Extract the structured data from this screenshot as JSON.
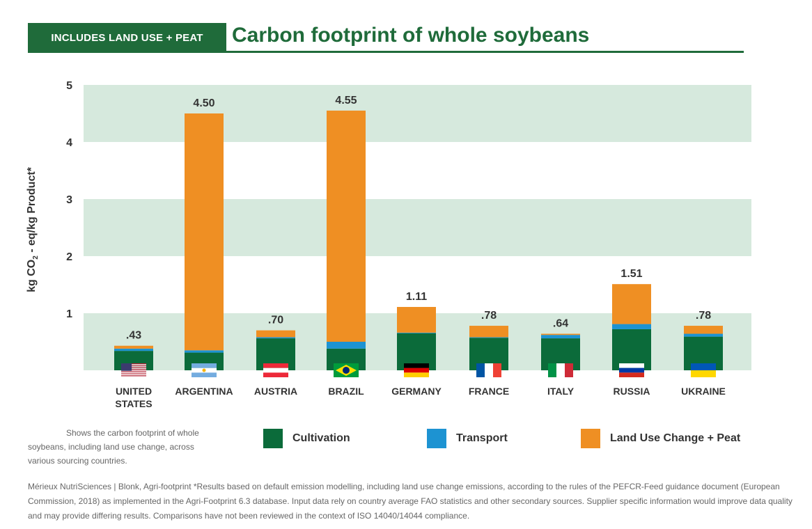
{
  "header": {
    "badge": "INCLUDES LAND USE + PEAT",
    "title": "Carbon footprint of whole soybeans"
  },
  "colors": {
    "cultivation": "#0b6b3a",
    "transport": "#1d93d2",
    "land_use": "#ef8f23",
    "band": "#d6e9dd",
    "header_green": "#1f6b3a"
  },
  "chart_data": {
    "type": "bar",
    "stacked": true,
    "ylabel_main": "kg CO",
    "ylabel_sub": "2",
    "ylabel_rest": " - eq/kg Product*",
    "ylim": [
      0,
      5
    ],
    "yticks": [
      "1",
      "2",
      "3",
      "4",
      "5"
    ],
    "grid": "alternating horizontal bands",
    "categories": [
      "UNITED STATES",
      "ARGENTINA",
      "AUSTRIA",
      "BRAZIL",
      "GERMANY",
      "FRANCE",
      "ITALY",
      "RUSSIA",
      "UKRAINE"
    ],
    "category_lines": [
      [
        "UNITED",
        "STATES"
      ],
      [
        "ARGENTINA"
      ],
      [
        "AUSTRIA"
      ],
      [
        "BRAZIL"
      ],
      [
        "GERMANY"
      ],
      [
        "FRANCE"
      ],
      [
        "ITALY"
      ],
      [
        "RUSSIA"
      ],
      [
        "UKRAINE"
      ]
    ],
    "flags": [
      "flag-united-states-icon",
      "flag-argentina-icon",
      "flag-austria-icon",
      "flag-brazil-icon",
      "flag-germany-icon",
      "flag-france-icon",
      "flag-italy-icon",
      "flag-russia-icon",
      "flag-ukraine-icon"
    ],
    "totals_labels": [
      ".43",
      "4.50",
      ".70",
      "4.55",
      "1.11",
      ".78",
      ".64",
      "1.51",
      ".78"
    ],
    "series": [
      {
        "name": "Cultivation",
        "values": [
          0.34,
          0.31,
          0.56,
          0.38,
          0.65,
          0.57,
          0.56,
          0.72,
          0.59
        ]
      },
      {
        "name": "Transport",
        "values": [
          0.04,
          0.04,
          0.02,
          0.12,
          0.01,
          0.01,
          0.06,
          0.09,
          0.05
        ]
      },
      {
        "name": "Land Use Change + Peat",
        "values": [
          0.05,
          4.15,
          0.12,
          4.05,
          0.45,
          0.2,
          0.02,
          0.7,
          0.14
        ]
      }
    ],
    "legend_position": "bottom"
  },
  "caption": "Shows the carbon footprint of whole soybeans, including land use change, across various sourcing countries.",
  "legend": [
    {
      "label": "Cultivation",
      "color": "#0b6b3a"
    },
    {
      "label": "Transport",
      "color": "#1d93d2"
    },
    {
      "label": "Land Use Change + Peat",
      "color": "#ef8f23"
    }
  ],
  "footnote": "Mérieux NutriSciences | Blonk, Agri-footprint *Results based on default emission modelling, including land use change emissions, according to the rules of the PEFCR-Feed guidance document (European Commission, 2018) as implemented in the Agri-Footprint 6.3 database. Input data rely on country average FAO statistics and other secondary sources. Supplier specific information would improve data quality and may provide differing results. Comparisons have not been reviewed in the context of ISO 14040/14044 compliance."
}
